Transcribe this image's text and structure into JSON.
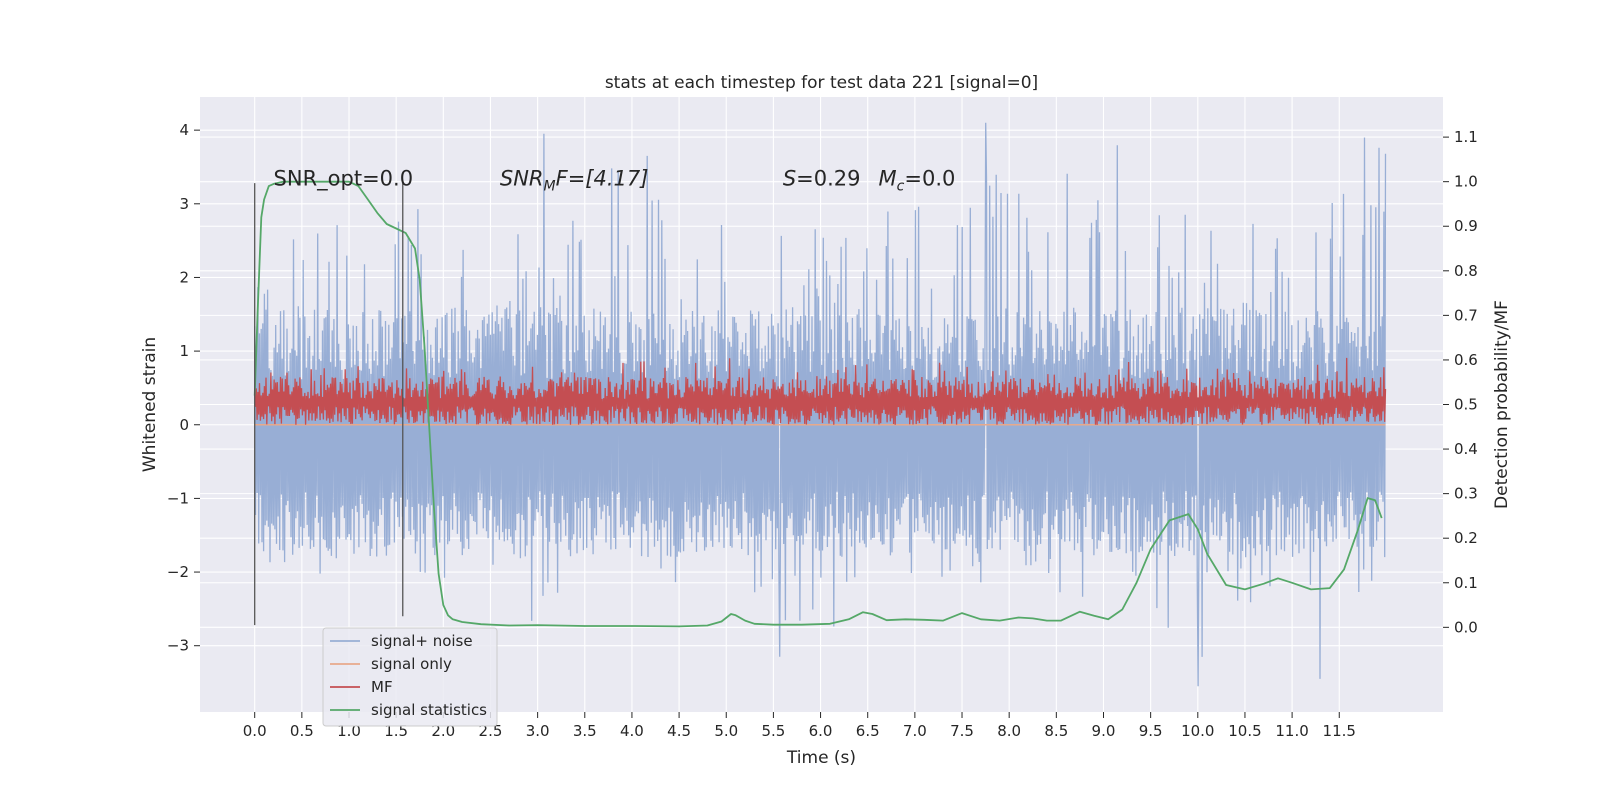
{
  "chart_data": {
    "type": "line",
    "title": "stats at each timestep for test data 221 [signal=0]",
    "xlabel": "Time (s)",
    "ylabel": "Whitened strain",
    "y2label": "Detection probability/MF",
    "xlim": [
      -0.58,
      12.6
    ],
    "ylim": [
      -3.9,
      4.45
    ],
    "y2lim": [
      -0.19,
      1.19
    ],
    "x_ticks": [
      0.0,
      0.5,
      1.0,
      1.5,
      2.0,
      2.5,
      3.0,
      3.5,
      4.0,
      4.5,
      5.0,
      5.5,
      6.0,
      6.5,
      7.0,
      7.5,
      8.0,
      8.5,
      9.0,
      9.5,
      10.0,
      10.5,
      11.0,
      11.5
    ],
    "x_tick_labels": [
      "0.0",
      "0.5",
      "1.0",
      "1.5",
      "2.0",
      "2.5",
      "3.0",
      "3.5",
      "4.0",
      "4.5",
      "5.0",
      "5.5",
      "6.0",
      "6.5",
      "7.0",
      "7.5",
      "8.0",
      "8.5",
      "9.0",
      "9.5",
      "10.0",
      "10.5",
      "11.0",
      "11.5"
    ],
    "y_ticks": [
      -3,
      -2,
      -1,
      0,
      1,
      2,
      3,
      4
    ],
    "y_tick_labels": [
      "−3",
      "−2",
      "−1",
      "0",
      "1",
      "2",
      "3",
      "4"
    ],
    "y2_ticks": [
      0.0,
      0.1,
      0.2,
      0.3,
      0.4,
      0.5,
      0.6,
      0.7,
      0.8,
      0.9,
      1.0,
      1.1
    ],
    "y2_tick_labels": [
      "0.0",
      "0.1",
      "0.2",
      "0.3",
      "0.4",
      "0.5",
      "0.6",
      "0.7",
      "0.8",
      "0.9",
      "1.0",
      "1.1"
    ],
    "grid": true,
    "legend_position": "lower-left",
    "legend": [
      "signal+ noise",
      "signal only",
      "MF",
      "signal statistics"
    ],
    "colors": {
      "background": "#eaeaf2",
      "grid": "#ffffff",
      "signal_noise": "#98aed5",
      "signal_only": "#e8a98b",
      "mf": "#c44e52",
      "signal_statistics": "#55a868",
      "vline": "#555555"
    },
    "annotations": {
      "snr_opt": "SNR_opt=0.0",
      "snr_mf_main": "SNR",
      "snr_mf_sub": "M",
      "snr_mf_rest": "F=[4.17]",
      "s_label": "S",
      "s_value": "=0.29",
      "mc_main": "M",
      "mc_sub": "c",
      "mc_value": "=0.0"
    },
    "annotation_positions": {
      "snr_opt": [
        0.2,
        3.25
      ],
      "snr_mf": [
        2.6,
        3.25
      ],
      "s": [
        5.6,
        3.25
      ]
    },
    "series": [
      {
        "name": "signal+ noise",
        "axis": "left",
        "x_range": [
          0.0,
          11.99
        ],
        "envelope_lower": [
          -2.0,
          -2.35,
          -1.7,
          -1.9,
          -2.2,
          -2.05,
          -2.8,
          -2.0,
          -2.1,
          -2.25,
          -2.0,
          -2.6,
          -2.9,
          -2.35,
          -2.1,
          -2.4,
          -2.25,
          -2.3,
          -2.45,
          -2.5,
          -3.35,
          -2.6,
          -2.4,
          -2.5,
          -2.65
        ],
        "envelope_upper": [
          2.3,
          2.6,
          2.85,
          2.75,
          3.3,
          2.6,
          2.7,
          2.9,
          3.95,
          2.7,
          3.0,
          3.65,
          2.8,
          3.0,
          3.05,
          3.2,
          3.5,
          3.25,
          4.1,
          3.35,
          3.05,
          2.85,
          3.05,
          3.3,
          3.9
        ],
        "peaks": [
          {
            "x": 3.07,
            "y": 3.95
          },
          {
            "x": 4.16,
            "y": 3.65
          },
          {
            "x": 7.75,
            "y": 4.1
          },
          {
            "x": 11.77,
            "y": 3.9
          },
          {
            "x": 10.0,
            "y": -3.55
          },
          {
            "x": 11.3,
            "y": -3.45
          },
          {
            "x": 5.57,
            "y": -3.15
          }
        ]
      },
      {
        "name": "signal only",
        "axis": "left",
        "x": [
          0.0,
          11.99
        ],
        "y": [
          0.0,
          0.0
        ]
      },
      {
        "name": "MF",
        "axis": "left",
        "x_range": [
          0.0,
          11.99
        ],
        "baseline": 0.22,
        "envelope_lower": 0.0,
        "envelope_upper": [
          0.7,
          0.75,
          0.85,
          0.9,
          0.8,
          0.75,
          0.85,
          0.8,
          0.85,
          0.9,
          0.95,
          0.8,
          0.75,
          0.85,
          0.8,
          0.9,
          0.75,
          0.85,
          0.8,
          0.9,
          0.8,
          0.85,
          0.8,
          0.9,
          0.95
        ]
      },
      {
        "name": "signal statistics",
        "axis": "right",
        "x": [
          0.0,
          0.03,
          0.07,
          0.1,
          0.15,
          0.2,
          0.3,
          0.5,
          0.7,
          0.9,
          1.0,
          1.1,
          1.2,
          1.3,
          1.4,
          1.5,
          1.6,
          1.7,
          1.75,
          1.8,
          1.85,
          1.9,
          1.95,
          2.0,
          2.05,
          2.1,
          2.2,
          2.4,
          2.7,
          3.0,
          3.5,
          4.0,
          4.5,
          4.8,
          4.95,
          5.05,
          5.1,
          5.2,
          5.3,
          5.5,
          5.8,
          6.1,
          6.3,
          6.45,
          6.55,
          6.7,
          6.9,
          7.1,
          7.3,
          7.5,
          7.7,
          7.9,
          8.1,
          8.25,
          8.4,
          8.55,
          8.75,
          8.9,
          9.05,
          9.2,
          9.35,
          9.5,
          9.7,
          9.9,
          10.0,
          10.1,
          10.3,
          10.5,
          10.7,
          10.85,
          11.0,
          11.2,
          11.4,
          11.55,
          11.7,
          11.8,
          11.88,
          11.95
        ],
        "y": [
          0.52,
          0.7,
          0.92,
          0.96,
          0.99,
          0.995,
          1.0,
          1.0,
          1.0,
          1.0,
          1.0,
          0.99,
          0.96,
          0.93,
          0.905,
          0.895,
          0.885,
          0.85,
          0.78,
          0.63,
          0.45,
          0.27,
          0.12,
          0.05,
          0.027,
          0.018,
          0.012,
          0.007,
          0.004,
          0.005,
          0.003,
          0.003,
          0.002,
          0.004,
          0.013,
          0.03,
          0.027,
          0.015,
          0.008,
          0.006,
          0.006,
          0.008,
          0.018,
          0.034,
          0.03,
          0.016,
          0.018,
          0.017,
          0.015,
          0.032,
          0.018,
          0.015,
          0.022,
          0.02,
          0.015,
          0.015,
          0.035,
          0.026,
          0.018,
          0.04,
          0.1,
          0.175,
          0.24,
          0.254,
          0.22,
          0.165,
          0.095,
          0.085,
          0.098,
          0.11,
          0.1,
          0.085,
          0.088,
          0.13,
          0.22,
          0.29,
          0.285,
          0.245
        ]
      }
    ],
    "vertical_lines": [
      {
        "x": 0.0,
        "ymin": -2.72,
        "ymax": 3.28
      },
      {
        "x": 1.57,
        "ymin": -2.6,
        "ymax": 3.28
      }
    ]
  }
}
